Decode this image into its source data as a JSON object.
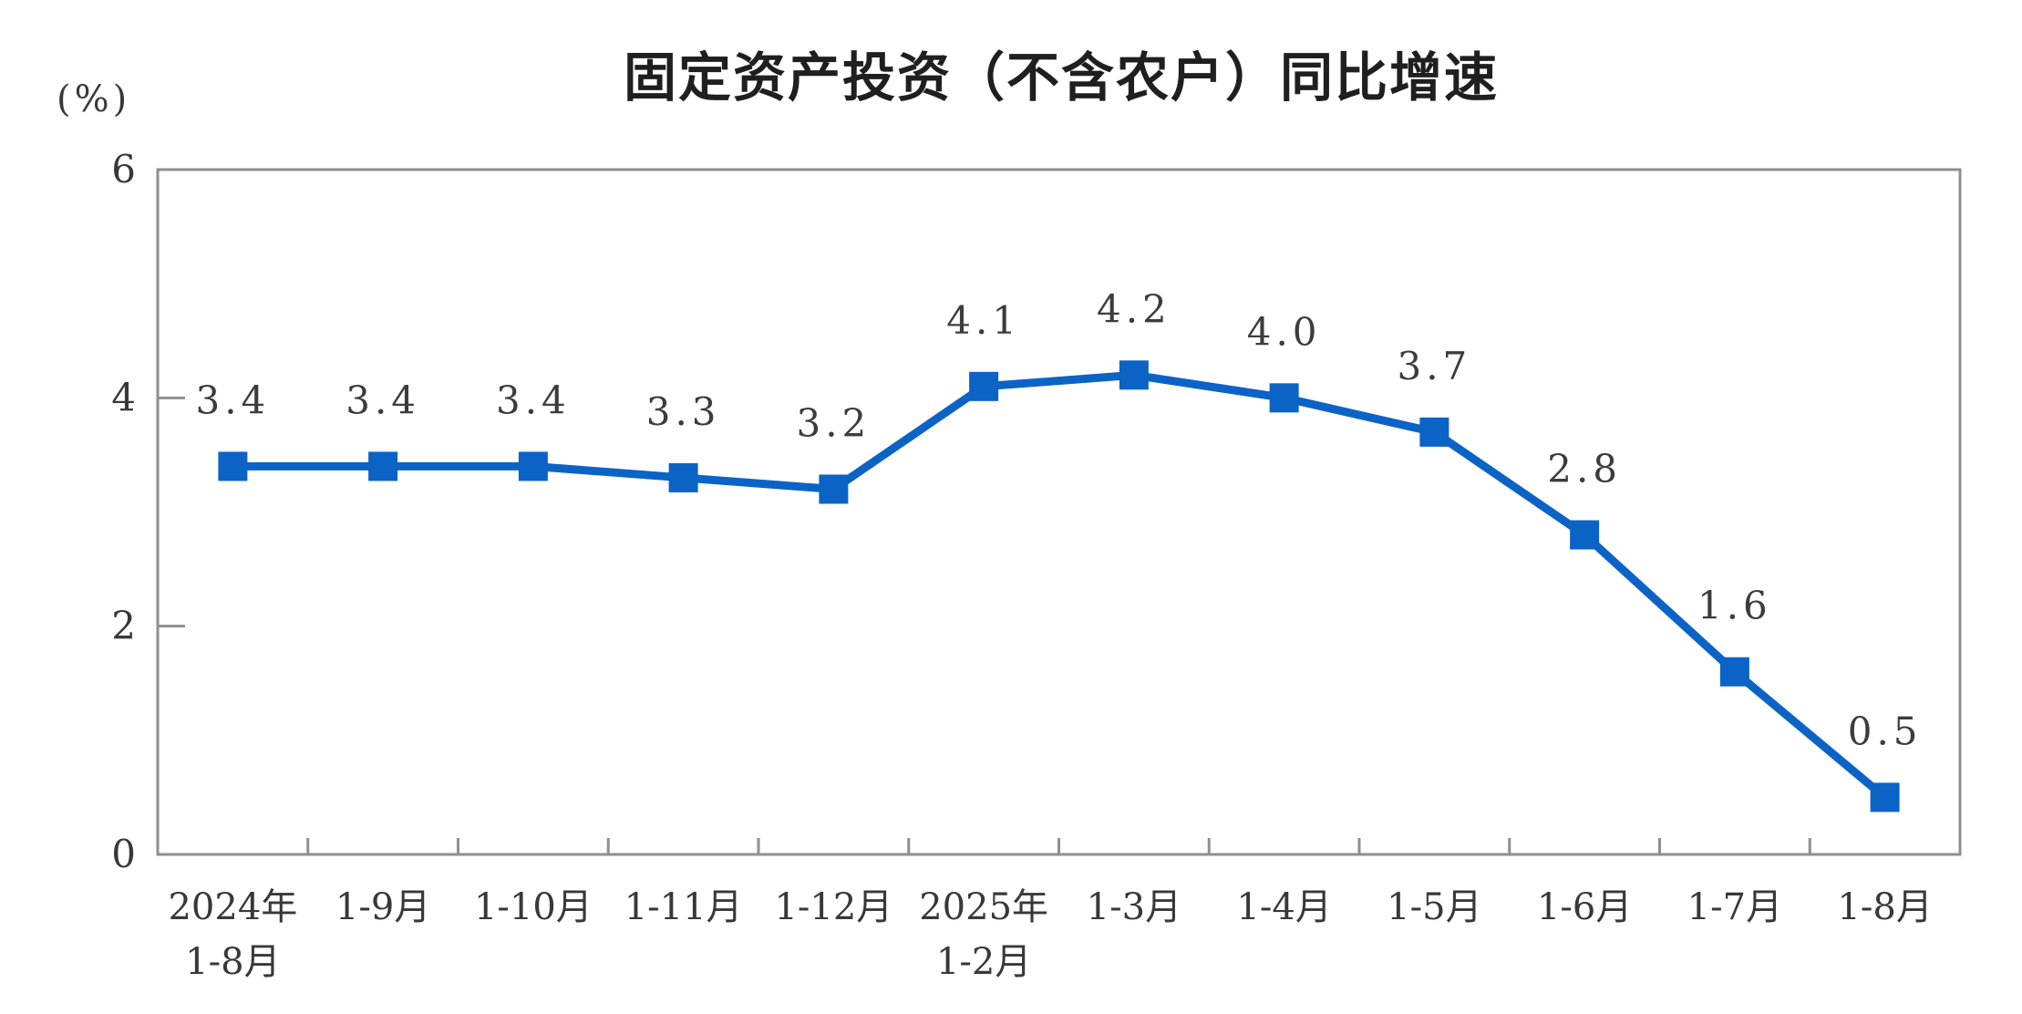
{
  "title": "固定资产投资（不含农户）同比增速",
  "chart_data": {
    "type": "line",
    "title": "固定资产投资（不含农户）同比增速",
    "ylabel": "(%)",
    "xlabel": "",
    "ylim": [
      0,
      6
    ],
    "yticks": [
      0,
      2,
      4,
      6
    ],
    "grid": false,
    "legend": false,
    "categories": [
      [
        "2024年",
        "1-8月"
      ],
      [
        "1-9月"
      ],
      [
        "1-10月"
      ],
      [
        "1-11月"
      ],
      [
        "1-12月"
      ],
      [
        "2025年",
        "1-2月"
      ],
      [
        "1-3月"
      ],
      [
        "1-4月"
      ],
      [
        "1-5月"
      ],
      [
        "1-6月"
      ],
      [
        "1-7月"
      ],
      [
        "1-8月"
      ]
    ],
    "values": [
      3.4,
      3.4,
      3.4,
      3.3,
      3.2,
      4.1,
      4.2,
      4.0,
      3.7,
      2.8,
      1.6,
      0.5
    ],
    "value_labels": [
      "3.4",
      "3.4",
      "3.4",
      "3.3",
      "3.2",
      "4.1",
      "4.2",
      "4.0",
      "3.7",
      "2.8",
      "1.6",
      "0.5"
    ],
    "marker": "square",
    "colors": {
      "line": "#0c63c6",
      "marker": "#0c63c6",
      "axis": "#8f8f8f",
      "tick_label": "#383838",
      "value_label": "#3c3c3c",
      "title": "#1f1f1f"
    }
  }
}
